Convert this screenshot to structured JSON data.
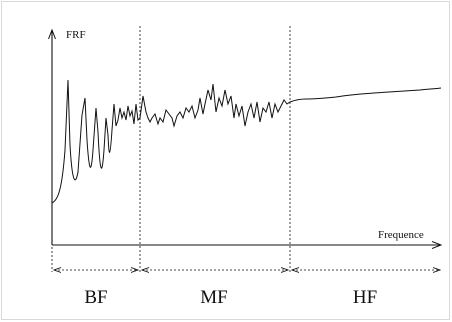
{
  "y_axis_label": "FRF",
  "x_axis_label": "Frequence",
  "bands": [
    {
      "id": "bf",
      "label": "BF"
    },
    {
      "id": "mf",
      "label": "MF"
    },
    {
      "id": "hf",
      "label": "HF"
    }
  ],
  "colors": {
    "ink": "#111111",
    "frame": "#d9d9d9",
    "background": "#ffffff"
  }
}
